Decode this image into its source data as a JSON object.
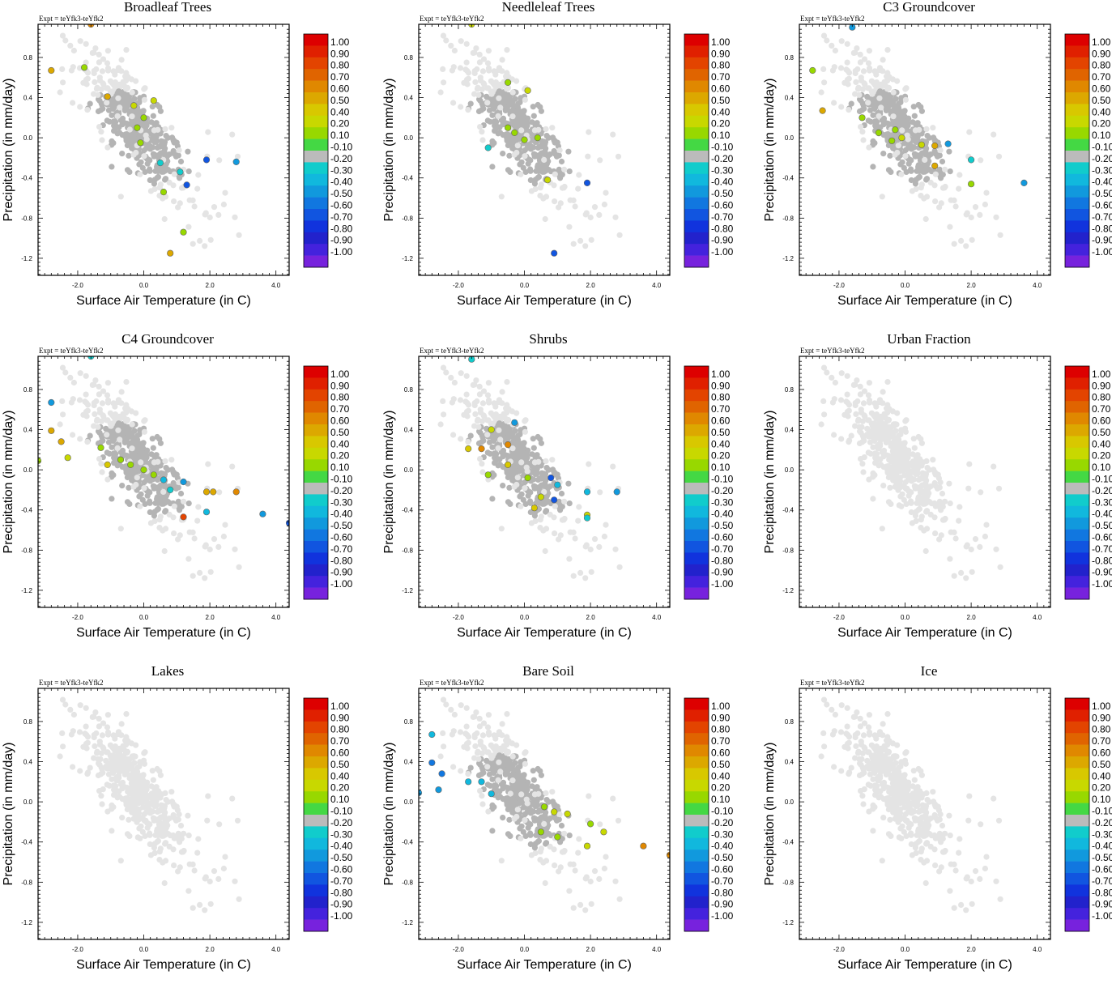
{
  "figure": {
    "expt_label": "Expt = teYfk3-teYfk2",
    "xlabel": "Surface Air Temperature (in C)",
    "ylabel": "Precipitation (in mm/day)",
    "x_ticks": [
      "-2.0",
      "0.0",
      "2.0",
      "4.0"
    ],
    "y_ticks": [
      "0.8",
      "0.4",
      "0.0",
      "-0.4",
      "-0.8",
      "-1.2"
    ],
    "colorbar_labels": [
      "1.00",
      "0.90",
      "0.80",
      "0.70",
      "0.60",
      "0.50",
      "0.40",
      "0.20",
      "0.10",
      "-0.10",
      "-0.20",
      "-0.30",
      "-0.40",
      "-0.50",
      "-0.60",
      "-0.70",
      "-0.80",
      "-0.90",
      "-1.00"
    ],
    "colorbar_colors": [
      "#dd0000",
      "#e02000",
      "#e34400",
      "#e06400",
      "#e08800",
      "#dca800",
      "#d8c800",
      "#c8d800",
      "#98d800",
      "#44d844",
      "#bbbbbb",
      "#11cccc",
      "#11b8dd",
      "#1199dd",
      "#1177e0",
      "#1155e0",
      "#1133dd",
      "#2222cc",
      "#4422dd",
      "#7722dd"
    ]
  },
  "chart_data": [
    {
      "type": "scatter",
      "title": "Broadleaf Trees",
      "xlim": [
        -3.2,
        4.4
      ],
      "ylim": [
        -1.37,
        1.13
      ],
      "colored_points": [
        {
          "x": -1.6,
          "y": 1.13,
          "r": 0.6
        },
        {
          "x": -2.8,
          "y": 0.67,
          "r": 0.5
        },
        {
          "x": -1.8,
          "y": 0.7,
          "r": 0.2
        },
        {
          "x": -1.1,
          "y": 0.41,
          "r": 0.5
        },
        {
          "x": -0.3,
          "y": 0.32,
          "r": 0.3
        },
        {
          "x": 0.3,
          "y": 0.37,
          "r": 0.3
        },
        {
          "x": 0.0,
          "y": 0.2,
          "r": 0.2
        },
        {
          "x": -0.2,
          "y": 0.1,
          "r": 0.2
        },
        {
          "x": -0.1,
          "y": -0.05,
          "r": 0.2
        },
        {
          "x": 0.5,
          "y": -0.25,
          "r": -0.2
        },
        {
          "x": 1.1,
          "y": -0.34,
          "r": -0.2
        },
        {
          "x": 1.3,
          "y": -0.47,
          "r": -0.6
        },
        {
          "x": 1.9,
          "y": -0.22,
          "r": -0.6
        },
        {
          "x": 2.8,
          "y": -0.24,
          "r": -0.4
        },
        {
          "x": 0.6,
          "y": -0.54,
          "r": 0.2
        },
        {
          "x": 1.2,
          "y": -0.94,
          "r": 0.2
        },
        {
          "x": 0.8,
          "y": -1.15,
          "r": 0.5
        }
      ]
    },
    {
      "type": "scatter",
      "title": "Needleleaf Trees",
      "xlim": [
        -3.2,
        4.4
      ],
      "ylim": [
        -1.37,
        1.13
      ],
      "colored_points": [
        {
          "x": -1.6,
          "y": 1.13,
          "r": 0.3
        },
        {
          "x": -0.5,
          "y": 0.55,
          "r": 0.2
        },
        {
          "x": 0.1,
          "y": 0.47,
          "r": 0.3
        },
        {
          "x": -0.5,
          "y": 0.1,
          "r": 0.2
        },
        {
          "x": -0.3,
          "y": 0.05,
          "r": 0.2
        },
        {
          "x": 0.0,
          "y": -0.02,
          "r": 0.2
        },
        {
          "x": 0.4,
          "y": 0.0,
          "r": 0.2
        },
        {
          "x": -1.1,
          "y": -0.1,
          "r": -0.2
        },
        {
          "x": 0.7,
          "y": -0.42,
          "r": 0.3
        },
        {
          "x": 1.9,
          "y": -0.45,
          "r": -0.6
        },
        {
          "x": 0.9,
          "y": -1.15,
          "r": -0.6
        }
      ]
    },
    {
      "type": "scatter",
      "title": "C3 Groundcover",
      "xlim": [
        -3.2,
        4.4
      ],
      "ylim": [
        -1.37,
        1.13
      ],
      "colored_points": [
        {
          "x": -1.6,
          "y": 1.1,
          "r": -0.4
        },
        {
          "x": -2.8,
          "y": 0.67,
          "r": 0.2
        },
        {
          "x": -2.5,
          "y": 0.27,
          "r": 0.5
        },
        {
          "x": -1.3,
          "y": 0.2,
          "r": 0.2
        },
        {
          "x": -0.8,
          "y": 0.05,
          "r": 0.2
        },
        {
          "x": -0.3,
          "y": 0.08,
          "r": 0.2
        },
        {
          "x": -0.1,
          "y": 0.0,
          "r": 0.3
        },
        {
          "x": -0.4,
          "y": -0.03,
          "r": 0.2
        },
        {
          "x": 0.5,
          "y": -0.07,
          "r": 0.3
        },
        {
          "x": 0.9,
          "y": -0.08,
          "r": 0.5
        },
        {
          "x": 1.3,
          "y": -0.06,
          "r": -0.4
        },
        {
          "x": 0.9,
          "y": -0.28,
          "r": 0.5
        },
        {
          "x": 2.0,
          "y": -0.22,
          "r": -0.2
        },
        {
          "x": 2.0,
          "y": -0.46,
          "r": 0.2
        },
        {
          "x": 3.6,
          "y": -0.45,
          "r": -0.4
        }
      ]
    },
    {
      "type": "scatter",
      "title": "C4 Groundcover",
      "xlim": [
        -3.2,
        4.4
      ],
      "ylim": [
        -1.37,
        1.13
      ],
      "colored_points": [
        {
          "x": -1.6,
          "y": 1.13,
          "r": -0.2
        },
        {
          "x": -2.8,
          "y": 0.67,
          "r": -0.4
        },
        {
          "x": -2.8,
          "y": 0.39,
          "r": 0.5
        },
        {
          "x": -2.5,
          "y": 0.28,
          "r": 0.5
        },
        {
          "x": -3.2,
          "y": 0.09,
          "r": 0.2
        },
        {
          "x": -2.3,
          "y": 0.12,
          "r": 0.3
        },
        {
          "x": -1.3,
          "y": 0.22,
          "r": 0.2
        },
        {
          "x": -1.1,
          "y": 0.05,
          "r": 0.4
        },
        {
          "x": -0.7,
          "y": 0.1,
          "r": 0.2
        },
        {
          "x": -0.4,
          "y": 0.05,
          "r": 0.2
        },
        {
          "x": 0.0,
          "y": 0.0,
          "r": 0.2
        },
        {
          "x": 0.3,
          "y": -0.05,
          "r": 0.2
        },
        {
          "x": 0.6,
          "y": -0.1,
          "r": -0.3
        },
        {
          "x": 0.8,
          "y": -0.2,
          "r": -0.2
        },
        {
          "x": 1.2,
          "y": -0.12,
          "r": -0.4
        },
        {
          "x": 1.2,
          "y": -0.47,
          "r": 0.8
        },
        {
          "x": 1.9,
          "y": -0.22,
          "r": 0.5
        },
        {
          "x": 2.1,
          "y": -0.22,
          "r": 0.5
        },
        {
          "x": 2.8,
          "y": -0.22,
          "r": 0.6
        },
        {
          "x": 1.9,
          "y": -0.42,
          "r": -0.3
        },
        {
          "x": 3.6,
          "y": -0.44,
          "r": -0.4
        },
        {
          "x": 4.4,
          "y": -0.53,
          "r": -0.6
        }
      ]
    },
    {
      "type": "scatter",
      "title": "Shrubs",
      "xlim": [
        -3.2,
        4.4
      ],
      "ylim": [
        -1.37,
        1.13
      ],
      "colored_points": [
        {
          "x": -1.6,
          "y": 1.1,
          "r": -0.2
        },
        {
          "x": -0.3,
          "y": 0.47,
          "r": -0.4
        },
        {
          "x": -1.0,
          "y": 0.4,
          "r": 0.3
        },
        {
          "x": -1.7,
          "y": 0.21,
          "r": 0.4
        },
        {
          "x": -1.3,
          "y": 0.21,
          "r": 0.6
        },
        {
          "x": -0.5,
          "y": 0.25,
          "r": 0.6
        },
        {
          "x": -0.5,
          "y": 0.05,
          "r": 0.4
        },
        {
          "x": -1.1,
          "y": -0.05,
          "r": 0.2
        },
        {
          "x": 0.1,
          "y": -0.08,
          "r": 0.2
        },
        {
          "x": 0.8,
          "y": -0.08,
          "r": -0.6
        },
        {
          "x": 1.0,
          "y": -0.15,
          "r": -0.3
        },
        {
          "x": 0.5,
          "y": -0.27,
          "r": 0.3
        },
        {
          "x": 0.9,
          "y": -0.3,
          "r": -0.6
        },
        {
          "x": 0.3,
          "y": -0.38,
          "r": 0.4
        },
        {
          "x": 1.9,
          "y": -0.22,
          "r": -0.3
        },
        {
          "x": 2.8,
          "y": -0.22,
          "r": -0.4
        },
        {
          "x": 1.9,
          "y": -0.45,
          "r": 0.3
        },
        {
          "x": 1.9,
          "y": -0.48,
          "r": -0.2
        }
      ]
    },
    {
      "type": "scatter",
      "title": "Urban Fraction",
      "xlim": [
        -3.2,
        4.4
      ],
      "ylim": [
        -1.37,
        1.13
      ],
      "colored_points": []
    },
    {
      "type": "scatter",
      "title": "Lakes",
      "xlim": [
        -3.2,
        4.4
      ],
      "ylim": [
        -1.37,
        1.13
      ],
      "colored_points": []
    },
    {
      "type": "scatter",
      "title": "Bare Soil",
      "xlim": [
        -3.2,
        4.4
      ],
      "ylim": [
        -1.37,
        1.13
      ],
      "colored_points": [
        {
          "x": -2.8,
          "y": 0.67,
          "r": -0.3
        },
        {
          "x": -2.8,
          "y": 0.39,
          "r": -0.5
        },
        {
          "x": -2.5,
          "y": 0.28,
          "r": -0.5
        },
        {
          "x": -2.6,
          "y": 0.12,
          "r": -0.4
        },
        {
          "x": -3.2,
          "y": 0.09,
          "r": -0.4
        },
        {
          "x": -1.7,
          "y": 0.2,
          "r": -0.3
        },
        {
          "x": -1.3,
          "y": 0.2,
          "r": -0.3
        },
        {
          "x": -1.0,
          "y": 0.08,
          "r": -0.3
        },
        {
          "x": 0.6,
          "y": -0.05,
          "r": 0.2
        },
        {
          "x": 0.9,
          "y": -0.1,
          "r": 0.3
        },
        {
          "x": 1.3,
          "y": -0.12,
          "r": 0.3
        },
        {
          "x": 0.5,
          "y": -0.3,
          "r": 0.2
        },
        {
          "x": 1.0,
          "y": -0.35,
          "r": 0.2
        },
        {
          "x": 2.0,
          "y": -0.22,
          "r": 0.2
        },
        {
          "x": 2.4,
          "y": -0.3,
          "r": 0.3
        },
        {
          "x": 1.9,
          "y": -0.44,
          "r": 0.3
        },
        {
          "x": 3.6,
          "y": -0.44,
          "r": 0.6
        },
        {
          "x": 4.4,
          "y": -0.53,
          "r": 0.6
        }
      ]
    },
    {
      "type": "scatter",
      "title": "Ice",
      "xlim": [
        -3.2,
        4.4
      ],
      "ylim": [
        -1.37,
        1.13
      ],
      "colored_points": []
    }
  ]
}
